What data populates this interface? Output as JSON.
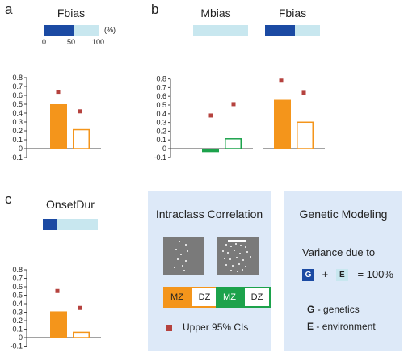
{
  "colors": {
    "mz": "#f4951b",
    "dz_border": "#f4951b",
    "mz_male": "#1ca24b",
    "dz_male_border": "#1ca24b",
    "ci_marker": "#b5423e",
    "gauge_fill": "#1b4aa3",
    "gauge_bg": "#c8e7ef",
    "legend_bg": "#dde9f8"
  },
  "panels": {
    "a": "a",
    "b": "b",
    "c": "c"
  },
  "gauge_scale": {
    "ticks": [
      "0",
      "50",
      "100"
    ],
    "unit": "(%)"
  },
  "chart_data": [
    {
      "type": "bar",
      "panel": "a",
      "title": "Fbias",
      "heritability_fraction": 0.56,
      "categories": [
        "MZ",
        "DZ"
      ],
      "values": [
        0.5,
        0.22
      ],
      "upper_ci": [
        0.64,
        0.42
      ],
      "ylim": [
        -0.1,
        0.8
      ],
      "yticks": [
        "0.8",
        "0.7",
        "0.6",
        "0.5",
        "0.4",
        "0.3",
        "0.2",
        "0.1",
        "0",
        "-0.1"
      ]
    },
    {
      "type": "bar",
      "panel": "b",
      "title": "Mbias",
      "heritability_fraction": 0.0,
      "categories": [
        "MZ",
        "DZ"
      ],
      "values": [
        -0.04,
        0.12
      ],
      "upper_ci": [
        0.38,
        0.51
      ],
      "ylim": [
        -0.1,
        0.8
      ],
      "yticks": [
        "0.8",
        "0.7",
        "0.6",
        "0.5",
        "0.4",
        "0.3",
        "0.2",
        "0.1",
        "0",
        "-0.1"
      ]
    },
    {
      "type": "bar",
      "panel": "b",
      "title": "Fbias",
      "heritability_fraction": 0.55,
      "categories": [
        "MZ",
        "DZ"
      ],
      "values": [
        0.56,
        0.31
      ],
      "upper_ci": [
        0.78,
        0.64
      ],
      "ylim": [
        -0.1,
        0.8
      ],
      "yticks": []
    },
    {
      "type": "bar",
      "panel": "c",
      "title": "OnsetDur",
      "heritability_fraction": 0.27,
      "categories": [
        "MZ",
        "DZ"
      ],
      "values": [
        0.31,
        0.07
      ],
      "upper_ci": [
        0.55,
        0.35
      ],
      "ylim": [
        -0.1,
        0.8
      ],
      "yticks": [
        "0.8",
        "0.7",
        "0.6",
        "0.5",
        "0.4",
        "0.3",
        "0.2",
        "0.1",
        "0",
        "-0.1"
      ]
    }
  ],
  "legend_icc": {
    "title": "Intraclass Correlation",
    "mz_label": "MZ",
    "dz_label": "DZ",
    "ci_label": "Upper 95% CIs"
  },
  "legend_genetic": {
    "title": "Genetic Modeling",
    "variance_label": "Variance due to",
    "g_letter": "G",
    "plus": "+",
    "e_letter": "E",
    "equals": "= 100%",
    "g_desc_letter": "G",
    "g_desc": "- genetics",
    "e_desc_letter": "E",
    "e_desc": "- environment"
  }
}
